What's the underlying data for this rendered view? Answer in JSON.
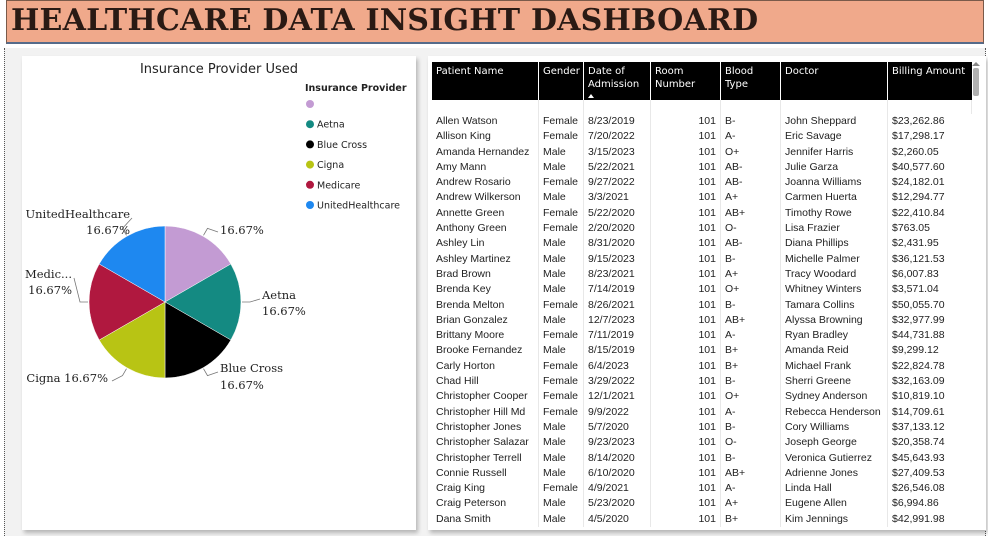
{
  "header": {
    "title": "HEALTHCARE DATA INSIGHT DASHBOARD"
  },
  "pie_chart": {
    "legend_title": "Insurance Provider",
    "colors": [
      "#c39bd3",
      "#148a82",
      "#000000",
      "#b8c414",
      "#b0183f",
      "#1e88f0"
    ]
  },
  "chart_data": {
    "type": "pie",
    "title": "Insurance Provider Used",
    "categories": [
      "",
      "Aetna",
      "Blue Cross",
      "Cigna",
      "Medicare",
      "UnitedHealthcare"
    ],
    "values": [
      16.67,
      16.67,
      16.67,
      16.67,
      16.67,
      16.67
    ],
    "legend_position": "top-right",
    "data_labels": [
      {
        "category": "",
        "label": "16.67%"
      },
      {
        "category": "Aetna",
        "label": "Aetna",
        "value": "16.67%"
      },
      {
        "category": "Blue Cross",
        "label": "Blue Cross",
        "value": "16.67%"
      },
      {
        "category": "Cigna",
        "label": "Cigna 16.67%"
      },
      {
        "category": "Medicare",
        "label": "Medic...",
        "value": "16.67%"
      },
      {
        "category": "UnitedHealthcare",
        "label": "UnitedHealthcare",
        "value": "16.67%"
      }
    ]
  },
  "table": {
    "columns": [
      "Patient Name",
      "Gender",
      "Date of Admission",
      "Room Number",
      "Blood Type",
      "Doctor",
      "Billing Amount"
    ],
    "rows": [
      [
        "Allen Watson",
        "Female",
        "8/23/2019",
        "101",
        "B-",
        "John Sheppard",
        "$23,262.86"
      ],
      [
        "Allison King",
        "Female",
        "7/20/2022",
        "101",
        "A-",
        "Eric Savage",
        "$17,298.17"
      ],
      [
        "Amanda Hernandez",
        "Male",
        "3/15/2023",
        "101",
        "O+",
        "Jennifer Harris",
        "$2,260.05"
      ],
      [
        "Amy Mann",
        "Male",
        "5/22/2021",
        "101",
        "AB-",
        "Julie Garza",
        "$40,577.60"
      ],
      [
        "Andrew Rosario",
        "Female",
        "9/27/2022",
        "101",
        "AB-",
        "Joanna Williams",
        "$24,182.01"
      ],
      [
        "Andrew Wilkerson",
        "Male",
        "3/3/2021",
        "101",
        "A+",
        "Carmen Huerta",
        "$12,294.77"
      ],
      [
        "Annette Green",
        "Female",
        "5/22/2020",
        "101",
        "AB+",
        "Timothy Rowe",
        "$22,410.84"
      ],
      [
        "Anthony Green",
        "Female",
        "2/20/2020",
        "101",
        "O-",
        "Lisa Frazier",
        "$763.05"
      ],
      [
        "Ashley Lin",
        "Male",
        "8/31/2020",
        "101",
        "AB-",
        "Diana Phillips",
        "$2,431.95"
      ],
      [
        "Ashley Martinez",
        "Male",
        "9/15/2023",
        "101",
        "B-",
        "Michelle Palmer",
        "$36,121.53"
      ],
      [
        "Brad Brown",
        "Male",
        "8/23/2021",
        "101",
        "A+",
        "Tracy Woodard",
        "$6,007.83"
      ],
      [
        "Brenda Key",
        "Male",
        "7/14/2019",
        "101",
        "O+",
        "Whitney Winters",
        "$3,571.04"
      ],
      [
        "Brenda Melton",
        "Female",
        "8/26/2021",
        "101",
        "B-",
        "Tamara Collins",
        "$50,055.70"
      ],
      [
        "Brian Gonzalez",
        "Male",
        "12/7/2023",
        "101",
        "AB+",
        "Alyssa Browning",
        "$32,977.99"
      ],
      [
        "Brittany Moore",
        "Female",
        "7/11/2019",
        "101",
        "A-",
        "Ryan Bradley",
        "$44,731.88"
      ],
      [
        "Brooke Fernandez",
        "Male",
        "8/15/2019",
        "101",
        "B+",
        "Amanda Reid",
        "$9,299.12"
      ],
      [
        "Carly Horton",
        "Female",
        "6/4/2023",
        "101",
        "B+",
        "Michael Frank",
        "$22,824.78"
      ],
      [
        "Chad Hill",
        "Female",
        "3/29/2022",
        "101",
        "B-",
        "Sherri Greene",
        "$32,163.09"
      ],
      [
        "Christopher Cooper",
        "Female",
        "12/1/2021",
        "101",
        "O+",
        "Sydney Anderson",
        "$10,819.10"
      ],
      [
        "Christopher Hill Md",
        "Female",
        "9/9/2022",
        "101",
        "A-",
        "Rebecca Henderson",
        "$14,709.61"
      ],
      [
        "Christopher Jones",
        "Male",
        "5/7/2020",
        "101",
        "B-",
        "Cory Williams",
        "$37,133.12"
      ],
      [
        "Christopher Salazar",
        "Male",
        "9/23/2023",
        "101",
        "O-",
        "Joseph George",
        "$20,358.74"
      ],
      [
        "Christopher Terrell",
        "Male",
        "8/14/2020",
        "101",
        "B-",
        "Veronica Gutierrez",
        "$45,643.93"
      ],
      [
        "Connie Russell",
        "Male",
        "6/10/2020",
        "101",
        "AB+",
        "Adrienne Jones",
        "$27,409.53"
      ],
      [
        "Craig King",
        "Female",
        "4/9/2021",
        "101",
        "A-",
        "Linda Hall",
        "$26,546.08"
      ],
      [
        "Craig Peterson",
        "Male",
        "5/23/2020",
        "101",
        "A+",
        "Eugene Allen",
        "$6,994.86"
      ],
      [
        "Dana Smith",
        "Male",
        "4/5/2020",
        "101",
        "B+",
        "Kim Jennings",
        "$42,991.98"
      ]
    ]
  }
}
